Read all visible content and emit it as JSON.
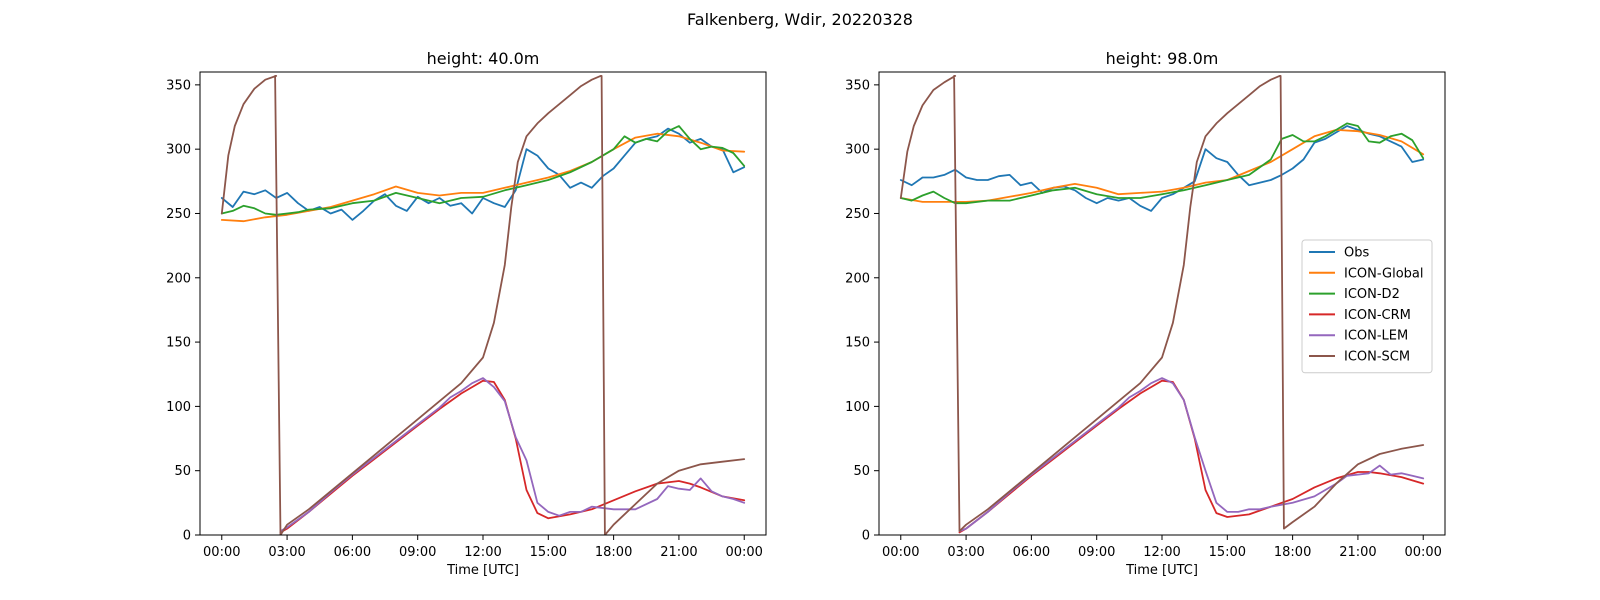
{
  "figure_title": "Falkenberg, Wdir, 20220328",
  "chart_data": [
    {
      "type": "line",
      "title": "height: 40.0m",
      "xlabel": "Time [UTC]",
      "ylabel": "",
      "xlim": [
        -1,
        25
      ],
      "ylim": [
        0,
        360
      ],
      "xticks": [
        0,
        3,
        6,
        9,
        12,
        15,
        18,
        21,
        24
      ],
      "xtick_labels": [
        "00:00",
        "03:00",
        "06:00",
        "09:00",
        "12:00",
        "15:00",
        "18:00",
        "21:00",
        "00:00"
      ],
      "yticks": [
        0,
        50,
        100,
        150,
        200,
        250,
        300,
        350
      ],
      "legend": false,
      "series": [
        {
          "name": "Obs",
          "color": "#1f77b4",
          "x": [
            0,
            0.5,
            1,
            1.5,
            2,
            2.5,
            3,
            3.5,
            4,
            4.5,
            5,
            5.5,
            6,
            6.5,
            7,
            7.5,
            8,
            8.5,
            9,
            9.5,
            10,
            10.5,
            11,
            11.5,
            12,
            12.5,
            13,
            13.5,
            14,
            14.5,
            15,
            15.5,
            16,
            16.5,
            17,
            17.5,
            18,
            18.5,
            19,
            19.5,
            20,
            20.5,
            21,
            21.5,
            22,
            22.5,
            23,
            23.5,
            24
          ],
          "y": [
            262,
            255,
            267,
            265,
            268,
            262,
            266,
            258,
            252,
            255,
            250,
            253,
            245,
            252,
            260,
            265,
            256,
            252,
            263,
            258,
            262,
            256,
            258,
            250,
            262,
            258,
            255,
            268,
            300,
            295,
            285,
            280,
            270,
            274,
            270,
            279,
            285,
            295,
            305,
            308,
            310,
            316,
            312,
            305,
            308,
            302,
            300,
            282,
            286
          ]
        },
        {
          "name": "ICON-Global",
          "color": "#ff7f0e",
          "x": [
            0,
            1,
            2,
            3,
            4,
            5,
            6,
            7,
            8,
            9,
            10,
            11,
            12,
            13,
            14,
            15,
            16,
            17,
            18,
            19,
            20,
            21,
            22,
            23,
            24
          ],
          "y": [
            245,
            244,
            247,
            249,
            252,
            255,
            260,
            265,
            271,
            266,
            264,
            266,
            266,
            270,
            274,
            278,
            283,
            290,
            300,
            309,
            312,
            310,
            305,
            299,
            298
          ]
        },
        {
          "name": "ICON-D2",
          "color": "#2ca02c",
          "x": [
            0,
            0.5,
            1,
            1.5,
            2,
            2.5,
            3,
            3.5,
            4,
            5,
            6,
            7,
            8,
            9,
            10,
            11,
            12,
            13,
            14,
            15,
            16,
            17,
            18,
            18.5,
            19,
            19.5,
            20,
            20.5,
            21,
            21.5,
            22,
            22.5,
            23,
            23.5,
            24
          ],
          "y": [
            250,
            252,
            256,
            254,
            250,
            249,
            250,
            251,
            253,
            254,
            258,
            260,
            266,
            262,
            258,
            262,
            263,
            268,
            272,
            276,
            282,
            290,
            300,
            310,
            305,
            308,
            306,
            314,
            318,
            308,
            300,
            302,
            301,
            297,
            287
          ]
        },
        {
          "name": "ICON-CRM",
          "color": "#d62728",
          "x": [
            2.7,
            3,
            4,
            5,
            6,
            7,
            8,
            9,
            10,
            11,
            11.5,
            12,
            12.5,
            13,
            13.5,
            14,
            14.5,
            15,
            16,
            17,
            18,
            19,
            20,
            21,
            21.5,
            22,
            23,
            24
          ],
          "y": [
            2,
            5,
            18,
            32,
            46,
            59,
            72,
            85,
            98,
            110,
            115,
            120,
            119,
            105,
            75,
            35,
            17,
            13,
            16,
            20,
            27,
            34,
            40,
            42,
            40,
            37,
            30,
            27
          ]
        },
        {
          "name": "ICON-LEM",
          "color": "#9467bd",
          "x": [
            2.7,
            3,
            4,
            5,
            6,
            7,
            8,
            9,
            10,
            10.5,
            11,
            11.5,
            12,
            12.5,
            13,
            13.5,
            14,
            14.5,
            15,
            15.5,
            16,
            16.5,
            17,
            18,
            19,
            20,
            20.5,
            21,
            21.5,
            22,
            22.5,
            23,
            23.5,
            24
          ],
          "y": [
            3,
            6,
            18,
            33,
            47,
            60,
            73,
            86,
            99,
            107,
            112,
            118,
            122,
            115,
            104,
            76,
            58,
            25,
            18,
            15,
            18,
            18,
            22,
            20,
            20,
            28,
            38,
            36,
            35,
            44,
            34,
            30,
            28,
            25
          ]
        },
        {
          "name": "ICON-SCM",
          "color": "#8c564b",
          "x": [
            0,
            0.3,
            0.6,
            1,
            1.5,
            2,
            2.5,
            2.45,
            2.7,
            3,
            4,
            5,
            6,
            7,
            8,
            9,
            10,
            11,
            12,
            12.5,
            13,
            13.3,
            13.6,
            14,
            14.5,
            15,
            15.5,
            16,
            16.5,
            17,
            17.4,
            17.45,
            17.6,
            18,
            19,
            20,
            21,
            22,
            23,
            24
          ],
          "y": [
            250,
            295,
            318,
            335,
            347,
            354,
            357,
            357,
            0,
            8,
            20,
            34,
            48,
            62,
            76,
            90,
            104,
            118,
            138,
            165,
            210,
            255,
            290,
            310,
            320,
            328,
            335,
            342,
            349,
            354,
            357,
            357,
            0,
            8,
            24,
            40,
            50,
            55,
            57,
            59
          ]
        }
      ]
    },
    {
      "type": "line",
      "title": "height: 98.0m",
      "xlabel": "Time [UTC]",
      "ylabel": "",
      "xlim": [
        -1,
        25
      ],
      "ylim": [
        0,
        360
      ],
      "xticks": [
        0,
        3,
        6,
        9,
        12,
        15,
        18,
        21,
        24
      ],
      "xtick_labels": [
        "00:00",
        "03:00",
        "06:00",
        "09:00",
        "12:00",
        "15:00",
        "18:00",
        "21:00",
        "00:00"
      ],
      "yticks": [
        0,
        50,
        100,
        150,
        200,
        250,
        300,
        350
      ],
      "legend": true,
      "legend_position": "center-right",
      "series": [
        {
          "name": "Obs",
          "color": "#1f77b4",
          "x": [
            0,
            0.5,
            1,
            1.5,
            2,
            2.5,
            3,
            3.5,
            4,
            4.5,
            5,
            5.5,
            6,
            6.5,
            7,
            7.5,
            8,
            8.5,
            9,
            9.5,
            10,
            10.5,
            11,
            11.5,
            12,
            12.5,
            13,
            13.5,
            14,
            14.5,
            15,
            15.5,
            16,
            16.5,
            17,
            17.5,
            18,
            18.5,
            19,
            19.5,
            20,
            20.5,
            21,
            21.5,
            22,
            22.5,
            23,
            23.5,
            24
          ],
          "y": [
            276,
            272,
            278,
            278,
            280,
            284,
            278,
            276,
            276,
            279,
            280,
            272,
            274,
            266,
            270,
            271,
            268,
            262,
            258,
            262,
            260,
            262,
            256,
            252,
            262,
            265,
            270,
            275,
            300,
            293,
            290,
            280,
            272,
            274,
            276,
            280,
            285,
            292,
            305,
            308,
            313,
            318,
            315,
            312,
            310,
            306,
            302,
            290,
            292
          ]
        },
        {
          "name": "ICON-Global",
          "color": "#ff7f0e",
          "x": [
            0,
            1,
            2,
            3,
            4,
            5,
            6,
            7,
            8,
            9,
            10,
            11,
            12,
            13,
            14,
            15,
            16,
            17,
            18,
            19,
            20,
            21,
            22,
            23,
            24
          ],
          "y": [
            262,
            259,
            259,
            259,
            260,
            263,
            266,
            270,
            273,
            270,
            265,
            266,
            267,
            270,
            274,
            276,
            283,
            290,
            300,
            310,
            315,
            314,
            311,
            306,
            296
          ]
        },
        {
          "name": "ICON-D2",
          "color": "#2ca02c",
          "x": [
            0,
            0.5,
            1,
            1.5,
            2,
            2.5,
            3,
            4,
            5,
            6,
            7,
            8,
            9,
            10,
            11,
            12,
            13,
            14,
            15,
            16,
            17,
            17.5,
            18,
            18.5,
            19,
            19.5,
            20,
            20.5,
            21,
            21.5,
            22,
            22.5,
            23,
            23.5,
            24
          ],
          "y": [
            262,
            260,
            264,
            267,
            262,
            258,
            258,
            260,
            260,
            264,
            268,
            270,
            265,
            262,
            262,
            265,
            268,
            272,
            276,
            280,
            292,
            308,
            311,
            306,
            306,
            310,
            315,
            320,
            318,
            306,
            305,
            310,
            312,
            307,
            293
          ]
        },
        {
          "name": "ICON-CRM",
          "color": "#d62728",
          "x": [
            2.7,
            3,
            4,
            5,
            6,
            7,
            8,
            9,
            10,
            11,
            11.5,
            12,
            12.5,
            13,
            13.5,
            14,
            14.5,
            15,
            16,
            17,
            18,
            19,
            20,
            21,
            21.5,
            22,
            23,
            24
          ],
          "y": [
            2,
            5,
            18,
            32,
            46,
            59,
            72,
            85,
            98,
            110,
            115,
            120,
            119,
            105,
            75,
            35,
            17,
            14,
            16,
            22,
            28,
            37,
            44,
            49,
            49,
            48,
            45,
            40
          ]
        },
        {
          "name": "ICON-LEM",
          "color": "#9467bd",
          "x": [
            2.7,
            3,
            4,
            5,
            6,
            7,
            8,
            9,
            10,
            10.5,
            11,
            11.5,
            12,
            12.5,
            13,
            13.5,
            14,
            14.5,
            15,
            15.5,
            16,
            16.5,
            17,
            18,
            19,
            20,
            20.5,
            21,
            21.5,
            22,
            22.5,
            23,
            23.5,
            24
          ],
          "y": [
            3,
            5,
            18,
            33,
            47,
            60,
            73,
            86,
            99,
            107,
            112,
            118,
            122,
            118,
            105,
            76,
            50,
            25,
            18,
            18,
            20,
            20,
            22,
            25,
            30,
            40,
            46,
            47,
            48,
            54,
            47,
            48,
            46,
            44
          ]
        },
        {
          "name": "ICON-SCM",
          "color": "#8c564b",
          "x": [
            0,
            0.3,
            0.6,
            1,
            1.5,
            2,
            2.5,
            2.45,
            2.7,
            3,
            4,
            5,
            6,
            7,
            8,
            9,
            10,
            11,
            12,
            12.5,
            13,
            13.3,
            13.6,
            14,
            14.5,
            15,
            15.5,
            16,
            16.5,
            17,
            17.4,
            17.45,
            17.6,
            18,
            19,
            20,
            21,
            22,
            23,
            24
          ],
          "y": [
            262,
            298,
            318,
            334,
            346,
            352,
            357,
            357,
            3,
            8,
            20,
            34,
            48,
            62,
            76,
            90,
            104,
            118,
            138,
            165,
            210,
            255,
            290,
            310,
            320,
            328,
            335,
            342,
            349,
            354,
            357,
            357,
            5,
            10,
            22,
            40,
            55,
            63,
            67,
            70
          ]
        }
      ]
    }
  ]
}
